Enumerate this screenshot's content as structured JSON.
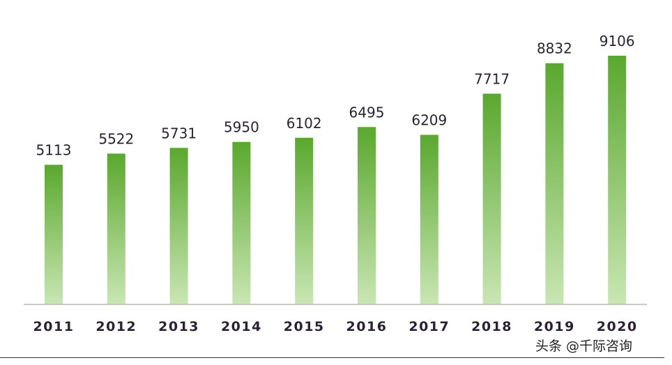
{
  "chart_data": {
    "type": "bar",
    "categories": [
      "2011",
      "2012",
      "2013",
      "2014",
      "2015",
      "2016",
      "2017",
      "2018",
      "2019",
      "2020"
    ],
    "values": [
      5113,
      5522,
      5731,
      5950,
      6102,
      6495,
      6209,
      7717,
      8832,
      9106
    ],
    "title": "",
    "xlabel": "",
    "ylabel": "",
    "ylim": [
      0,
      9106
    ],
    "grid": false,
    "data_labels": true,
    "bar_color_top": "#5aa82e",
    "bar_color_bottom": "#c9e6b3"
  },
  "credit": "头条 @千际咨询"
}
